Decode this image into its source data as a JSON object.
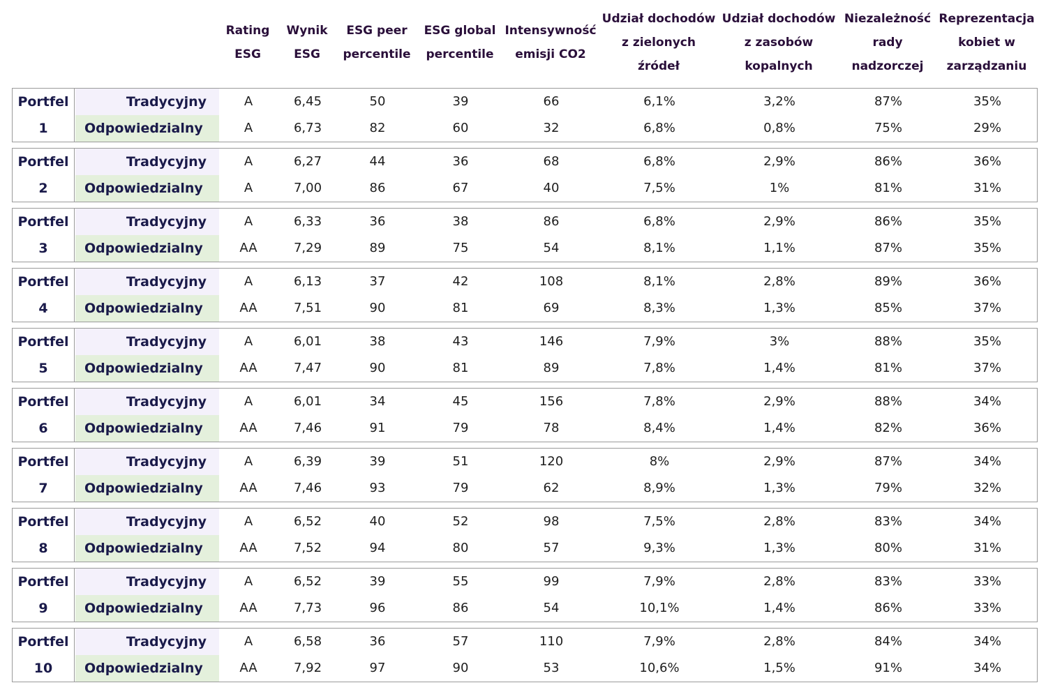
{
  "chart_data": {
    "type": "table",
    "columns": [
      [
        "Rating",
        "ESG"
      ],
      [
        "Wynik",
        "ESG"
      ],
      [
        "ESG peer",
        "percentile"
      ],
      [
        "ESG global",
        "percentile"
      ],
      [
        "Intensywność",
        "emisji CO2"
      ],
      [
        "Udział dochodów",
        "z zielonych",
        "źródeł"
      ],
      [
        "Udział dochodów",
        "z zasobów",
        "kopalnych"
      ],
      [
        "Niezależność",
        "rady",
        "nadzorczej"
      ],
      [
        "Reprezentacja",
        "kobiet w",
        "zarządzaniu"
      ]
    ],
    "groups": [
      {
        "portfel": "Portfel",
        "num": "1",
        "rows": [
          {
            "label": "Tradycyjny",
            "values": [
              "A",
              "6,45",
              "50",
              "39",
              "66",
              "6,1%",
              "3,2%",
              "87%",
              "35%"
            ]
          },
          {
            "label": "Odpowiedzialny",
            "values": [
              "A",
              "6,73",
              "82",
              "60",
              "32",
              "6,8%",
              "0,8%",
              "75%",
              "29%"
            ]
          }
        ]
      },
      {
        "portfel": "Portfel",
        "num": "2",
        "rows": [
          {
            "label": "Tradycyjny",
            "values": [
              "A",
              "6,27",
              "44",
              "36",
              "68",
              "6,8%",
              "2,9%",
              "86%",
              "36%"
            ]
          },
          {
            "label": "Odpowiedzialny",
            "values": [
              "A",
              "7,00",
              "86",
              "67",
              "40",
              "7,5%",
              "1%",
              "81%",
              "31%"
            ]
          }
        ]
      },
      {
        "portfel": "Portfel",
        "num": "3",
        "rows": [
          {
            "label": "Tradycyjny",
            "values": [
              "A",
              "6,33",
              "36",
              "38",
              "86",
              "6,8%",
              "2,9%",
              "86%",
              "35%"
            ]
          },
          {
            "label": "Odpowiedzialny",
            "values": [
              "AA",
              "7,29",
              "89",
              "75",
              "54",
              "8,1%",
              "1,1%",
              "87%",
              "35%"
            ]
          }
        ]
      },
      {
        "portfel": "Portfel",
        "num": "4",
        "rows": [
          {
            "label": "Tradycyjny",
            "values": [
              "A",
              "6,13",
              "37",
              "42",
              "108",
              "8,1%",
              "2,8%",
              "89%",
              "36%"
            ]
          },
          {
            "label": "Odpowiedzialny",
            "values": [
              "AA",
              "7,51",
              "90",
              "81",
              "69",
              "8,3%",
              "1,3%",
              "85%",
              "37%"
            ]
          }
        ]
      },
      {
        "portfel": "Portfel",
        "num": "5",
        "rows": [
          {
            "label": "Tradycyjny",
            "values": [
              "A",
              "6,01",
              "38",
              "43",
              "146",
              "7,9%",
              "3%",
              "88%",
              "35%"
            ]
          },
          {
            "label": "Odpowiedzialny",
            "values": [
              "AA",
              "7,47",
              "90",
              "81",
              "89",
              "7,8%",
              "1,4%",
              "81%",
              "37%"
            ]
          }
        ]
      },
      {
        "portfel": "Portfel",
        "num": "6",
        "rows": [
          {
            "label": "Tradycyjny",
            "values": [
              "A",
              "6,01",
              "34",
              "45",
              "156",
              "7,8%",
              "2,9%",
              "88%",
              "34%"
            ]
          },
          {
            "label": "Odpowiedzialny",
            "values": [
              "AA",
              "7,46",
              "91",
              "79",
              "78",
              "8,4%",
              "1,4%",
              "82%",
              "36%"
            ]
          }
        ]
      },
      {
        "portfel": "Portfel",
        "num": "7",
        "rows": [
          {
            "label": "Tradycyjny",
            "values": [
              "A",
              "6,39",
              "39",
              "51",
              "120",
              "8%",
              "2,9%",
              "87%",
              "34%"
            ]
          },
          {
            "label": "Odpowiedzialny",
            "values": [
              "AA",
              "7,46",
              "93",
              "79",
              "62",
              "8,9%",
              "1,3%",
              "79%",
              "32%"
            ]
          }
        ]
      },
      {
        "portfel": "Portfel",
        "num": "8",
        "rows": [
          {
            "label": "Tradycyjny",
            "values": [
              "A",
              "6,52",
              "40",
              "52",
              "98",
              "7,5%",
              "2,8%",
              "83%",
              "34%"
            ]
          },
          {
            "label": "Odpowiedzialny",
            "values": [
              "AA",
              "7,52",
              "94",
              "80",
              "57",
              "9,3%",
              "1,3%",
              "80%",
              "31%"
            ]
          }
        ]
      },
      {
        "portfel": "Portfel",
        "num": "9",
        "rows": [
          {
            "label": "Tradycyjny",
            "values": [
              "A",
              "6,52",
              "39",
              "55",
              "99",
              "7,9%",
              "2,8%",
              "83%",
              "33%"
            ]
          },
          {
            "label": "Odpowiedzialny",
            "values": [
              "AA",
              "7,73",
              "96",
              "86",
              "54",
              "10,1%",
              "1,4%",
              "86%",
              "33%"
            ]
          }
        ]
      },
      {
        "portfel": "Portfel",
        "num": "10",
        "rows": [
          {
            "label": "Tradycyjny",
            "values": [
              "A",
              "6,58",
              "36",
              "57",
              "110",
              "7,9%",
              "2,8%",
              "84%",
              "34%"
            ]
          },
          {
            "label": "Odpowiedzialny",
            "values": [
              "AA",
              "7,92",
              "97",
              "90",
              "53",
              "10,6%",
              "1,5%",
              "91%",
              "34%"
            ]
          }
        ]
      }
    ]
  }
}
